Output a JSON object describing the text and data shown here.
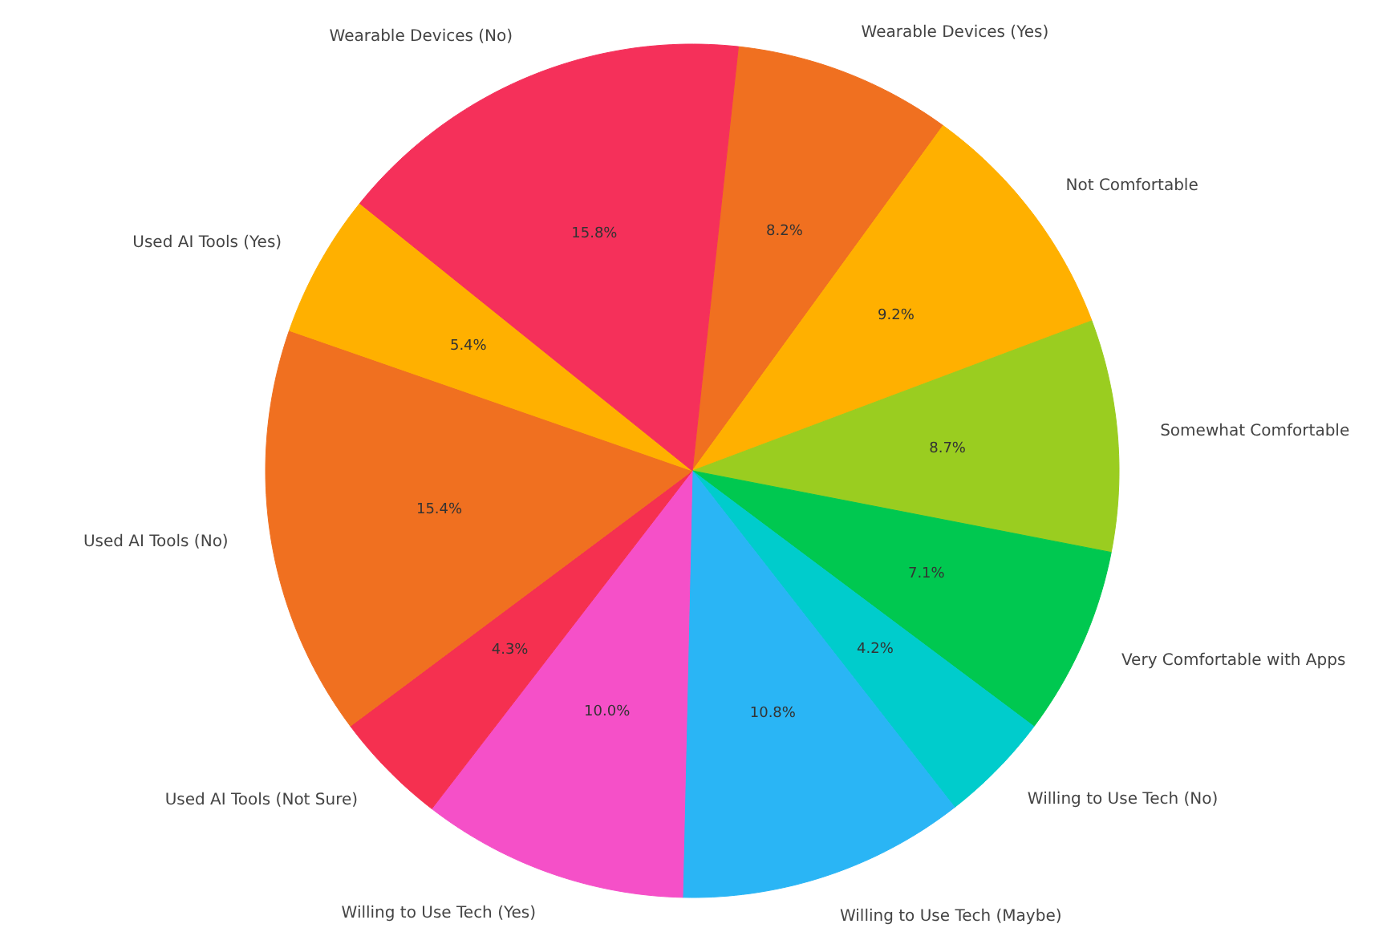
{
  "chart_data": {
    "type": "pie",
    "categories": [
      "Wearable Devices (Yes)",
      "Not Comfortable",
      "Somewhat Comfortable",
      "Very Comfortable with Apps",
      "Willing to Use Tech (No)",
      "Willing to Use Tech (Maybe)",
      "Willing to Use Tech (Yes)",
      "Used AI Tools (Not Sure)",
      "Used AI Tools (No)",
      "Used AI Tools (Yes)",
      "Wearable Devices (No)"
    ],
    "values": [
      8.2,
      9.2,
      8.7,
      7.1,
      4.2,
      10.8,
      10.0,
      4.3,
      15.4,
      5.4,
      15.8
    ],
    "value_labels": [
      "8.2%",
      "9.2%",
      "8.7%",
      "7.1%",
      "4.2%",
      "10.8%",
      "10.0%",
      "4.3%",
      "15.4%",
      "5.4%",
      "15.8%"
    ],
    "colors": [
      "#f07020",
      "#ffb000",
      "#9acd20",
      "#00c850",
      "#00cccc",
      "#2ab5f5",
      "#f550c8",
      "#f53050",
      "#f07020",
      "#ffb000",
      "#f5305a"
    ]
  }
}
